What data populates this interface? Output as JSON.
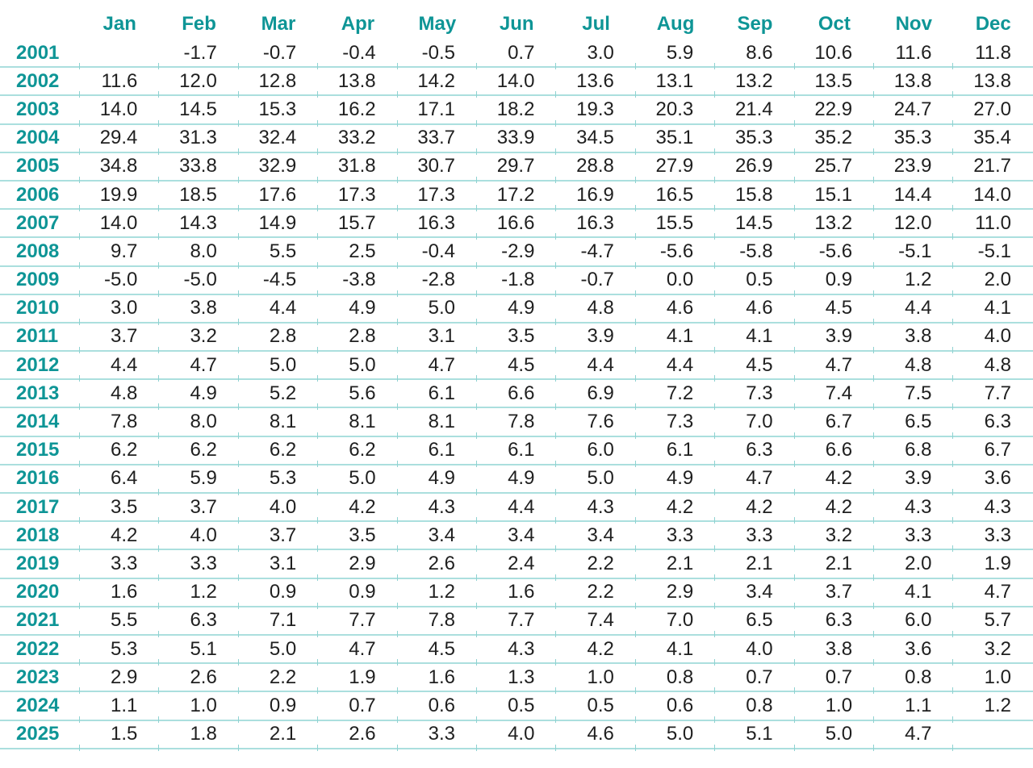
{
  "colors": {
    "accent": "#0e9596",
    "grid_line": "#abdfde",
    "tick": "#8fd2d1",
    "value_text": "#1f1f1f",
    "background": "#ffffff"
  },
  "chart_data": {
    "type": "table",
    "title": "",
    "columns": [
      "Jan",
      "Feb",
      "Mar",
      "Apr",
      "May",
      "Jun",
      "Jul",
      "Aug",
      "Sep",
      "Oct",
      "Nov",
      "Dec"
    ],
    "row_label_name": "year",
    "value_decimals": 1,
    "rows": [
      {
        "year": "2001",
        "values": [
          null,
          -1.7,
          -0.7,
          -0.4,
          -0.5,
          0.7,
          3.0,
          5.9,
          8.6,
          10.6,
          11.6,
          11.8
        ]
      },
      {
        "year": "2002",
        "values": [
          11.6,
          12.0,
          12.8,
          13.8,
          14.2,
          14.0,
          13.6,
          13.1,
          13.2,
          13.5,
          13.8,
          13.8
        ]
      },
      {
        "year": "2003",
        "values": [
          14.0,
          14.5,
          15.3,
          16.2,
          17.1,
          18.2,
          19.3,
          20.3,
          21.4,
          22.9,
          24.7,
          27.0
        ]
      },
      {
        "year": "2004",
        "values": [
          29.4,
          31.3,
          32.4,
          33.2,
          33.7,
          33.9,
          34.5,
          35.1,
          35.3,
          35.2,
          35.3,
          35.4
        ]
      },
      {
        "year": "2005",
        "values": [
          34.8,
          33.8,
          32.9,
          31.8,
          30.7,
          29.7,
          28.8,
          27.9,
          26.9,
          25.7,
          23.9,
          21.7
        ]
      },
      {
        "year": "2006",
        "values": [
          19.9,
          18.5,
          17.6,
          17.3,
          17.3,
          17.2,
          16.9,
          16.5,
          15.8,
          15.1,
          14.4,
          14.0
        ]
      },
      {
        "year": "2007",
        "values": [
          14.0,
          14.3,
          14.9,
          15.7,
          16.3,
          16.6,
          16.3,
          15.5,
          14.5,
          13.2,
          12.0,
          11.0
        ]
      },
      {
        "year": "2008",
        "values": [
          9.7,
          8.0,
          5.5,
          2.5,
          -0.4,
          -2.9,
          -4.7,
          -5.6,
          -5.8,
          -5.6,
          -5.1,
          -5.1
        ]
      },
      {
        "year": "2009",
        "values": [
          -5.0,
          -5.0,
          -4.5,
          -3.8,
          -2.8,
          -1.8,
          -0.7,
          0.0,
          0.5,
          0.9,
          1.2,
          2.0
        ]
      },
      {
        "year": "2010",
        "values": [
          3.0,
          3.8,
          4.4,
          4.9,
          5.0,
          4.9,
          4.8,
          4.6,
          4.6,
          4.5,
          4.4,
          4.1
        ]
      },
      {
        "year": "2011",
        "values": [
          3.7,
          3.2,
          2.8,
          2.8,
          3.1,
          3.5,
          3.9,
          4.1,
          4.1,
          3.9,
          3.8,
          4.0
        ]
      },
      {
        "year": "2012",
        "values": [
          4.4,
          4.7,
          5.0,
          5.0,
          4.7,
          4.5,
          4.4,
          4.4,
          4.5,
          4.7,
          4.8,
          4.8
        ]
      },
      {
        "year": "2013",
        "values": [
          4.8,
          4.9,
          5.2,
          5.6,
          6.1,
          6.6,
          6.9,
          7.2,
          7.3,
          7.4,
          7.5,
          7.7
        ]
      },
      {
        "year": "2014",
        "values": [
          7.8,
          8.0,
          8.1,
          8.1,
          8.1,
          7.8,
          7.6,
          7.3,
          7.0,
          6.7,
          6.5,
          6.3
        ]
      },
      {
        "year": "2015",
        "values": [
          6.2,
          6.2,
          6.2,
          6.2,
          6.1,
          6.1,
          6.0,
          6.1,
          6.3,
          6.6,
          6.8,
          6.7
        ]
      },
      {
        "year": "2016",
        "values": [
          6.4,
          5.9,
          5.3,
          5.0,
          4.9,
          4.9,
          5.0,
          4.9,
          4.7,
          4.2,
          3.9,
          3.6
        ]
      },
      {
        "year": "2017",
        "values": [
          3.5,
          3.7,
          4.0,
          4.2,
          4.3,
          4.4,
          4.3,
          4.2,
          4.2,
          4.2,
          4.3,
          4.3
        ]
      },
      {
        "year": "2018",
        "values": [
          4.2,
          4.0,
          3.7,
          3.5,
          3.4,
          3.4,
          3.4,
          3.3,
          3.3,
          3.2,
          3.3,
          3.3
        ]
      },
      {
        "year": "2019",
        "values": [
          3.3,
          3.3,
          3.1,
          2.9,
          2.6,
          2.4,
          2.2,
          2.1,
          2.1,
          2.1,
          2.0,
          1.9
        ]
      },
      {
        "year": "2020",
        "values": [
          1.6,
          1.2,
          0.9,
          0.9,
          1.2,
          1.6,
          2.2,
          2.9,
          3.4,
          3.7,
          4.1,
          4.7
        ]
      },
      {
        "year": "2021",
        "values": [
          5.5,
          6.3,
          7.1,
          7.7,
          7.8,
          7.7,
          7.4,
          7.0,
          6.5,
          6.3,
          6.0,
          5.7
        ]
      },
      {
        "year": "2022",
        "values": [
          5.3,
          5.1,
          5.0,
          4.7,
          4.5,
          4.3,
          4.2,
          4.1,
          4.0,
          3.8,
          3.6,
          3.2
        ]
      },
      {
        "year": "2023",
        "values": [
          2.9,
          2.6,
          2.2,
          1.9,
          1.6,
          1.3,
          1.0,
          0.8,
          0.7,
          0.7,
          0.8,
          1.0
        ]
      },
      {
        "year": "2024",
        "values": [
          1.1,
          1.0,
          0.9,
          0.7,
          0.6,
          0.5,
          0.5,
          0.6,
          0.8,
          1.0,
          1.1,
          1.2
        ]
      },
      {
        "year": "2025",
        "values": [
          1.5,
          1.8,
          2.1,
          2.6,
          3.3,
          4.0,
          4.6,
          5.0,
          5.1,
          5.0,
          4.7,
          null
        ]
      }
    ]
  }
}
